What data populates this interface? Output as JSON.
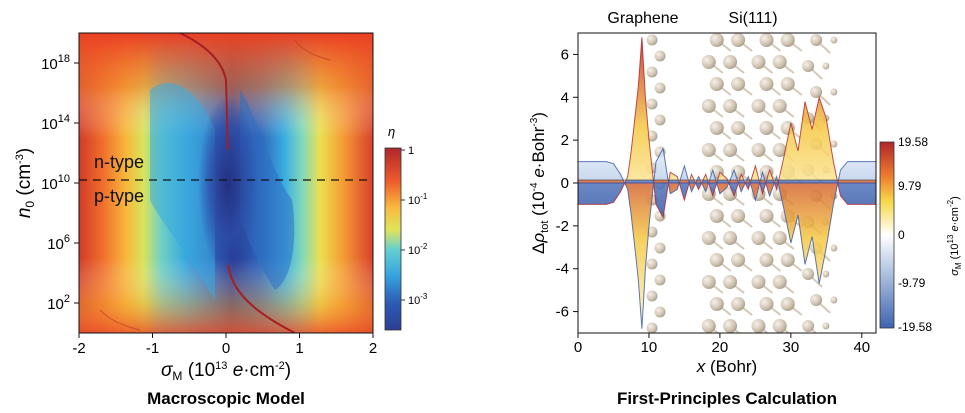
{
  "chart_data": [
    {
      "type": "heatmap",
      "caption": "Macroscopic Model",
      "xlabel": "σ_M (10^13 e·cm^-2)",
      "ylabel": "n_0 (cm^-3)",
      "x_ticks": [
        "-2",
        "-1",
        "0",
        "1",
        "2"
      ],
      "xlim": [
        -2,
        2
      ],
      "y_ticks": [
        "10^2",
        "10^6",
        "10^10",
        "10^14",
        "10^18"
      ],
      "ylim_log10": [
        0,
        20
      ],
      "y_scale": "log",
      "annotations": [
        "n-type",
        "p-type"
      ],
      "divider_line": {
        "y": "10^10",
        "style": "dashed"
      },
      "colorbar": {
        "label": "η",
        "ticks": [
          "1",
          "10^-1",
          "10^-2",
          "10^-3"
        ],
        "colors": [
          "#b0262b",
          "#f6d84a",
          "#35b6e6",
          "#2a3f93"
        ]
      }
    },
    {
      "type": "line",
      "caption": "First-Principles Calculation",
      "structure_labels": [
        "Graphene",
        "Si(111)"
      ],
      "xlabel": "x (Bohr)",
      "ylabel": "Δρ_tot (10^-4 e·Bohr^-3)",
      "x_ticks": [
        "0",
        "10",
        "20",
        "30",
        "40"
      ],
      "xlim": [
        0,
        42
      ],
      "y_ticks": [
        "-6",
        "-4",
        "-2",
        "0",
        "2",
        "4",
        "6"
      ],
      "ylim": [
        -7,
        7
      ],
      "colorbar": {
        "label": "σ_M (10^13 e·cm^-2)",
        "ticks": [
          "19.58",
          "9.79",
          "0",
          "-9.79",
          "-19.58"
        ],
        "colors": [
          "#b0262b",
          "#f6d84a",
          "#ffffff",
          "#3e63ae"
        ]
      },
      "series": [
        {
          "x": [
            0,
            2,
            4,
            5,
            6,
            7,
            7.5,
            8,
            8.5,
            9,
            9.5,
            10,
            10.5,
            11,
            12,
            13,
            14,
            15,
            16,
            17,
            18,
            19,
            20,
            21,
            22,
            23,
            24,
            25,
            26,
            27,
            28,
            29,
            30,
            31,
            32,
            33,
            34,
            35,
            36,
            37,
            38,
            40,
            42
          ],
          "y": [
            -1,
            -1,
            -1,
            -0.9,
            -0.4,
            0.3,
            1.5,
            3,
            4.5,
            6.8,
            4,
            2,
            0.5,
            -1,
            -1.6,
            0.5,
            0.3,
            -0.8,
            0.4,
            -0.3,
            0.4,
            -0.6,
            0.5,
            0.2,
            -0.6,
            0.4,
            -0.3,
            0.8,
            -0.5,
            0.6,
            -0.3,
            1.2,
            2.8,
            1.5,
            3.8,
            2.5,
            4,
            3,
            1,
            -0.6,
            -1,
            -1,
            -1
          ]
        },
        {
          "x": [
            0,
            2,
            4,
            5,
            6,
            7,
            7.5,
            8,
            8.5,
            9,
            9.5,
            10,
            10.5,
            11,
            12,
            13,
            14,
            15,
            16,
            17,
            18,
            19,
            20,
            21,
            22,
            23,
            24,
            25,
            26,
            27,
            28,
            29,
            30,
            31,
            32,
            33,
            34,
            35,
            36,
            37,
            38,
            40,
            42
          ],
          "y": [
            1,
            1,
            1,
            0.9,
            0.4,
            -0.3,
            -1.5,
            -3,
            -4.5,
            -6.8,
            -4,
            -2,
            -0.5,
            1,
            1.6,
            -0.5,
            -0.3,
            0.8,
            -0.4,
            0.3,
            -0.4,
            0.6,
            -0.5,
            -0.2,
            0.6,
            -0.4,
            0.3,
            -0.8,
            0.5,
            -0.6,
            0.3,
            -1.2,
            -2.8,
            -1.5,
            -3.8,
            -2.5,
            -4.7,
            -3,
            -1,
            0.6,
            1,
            1,
            1
          ]
        }
      ]
    }
  ]
}
